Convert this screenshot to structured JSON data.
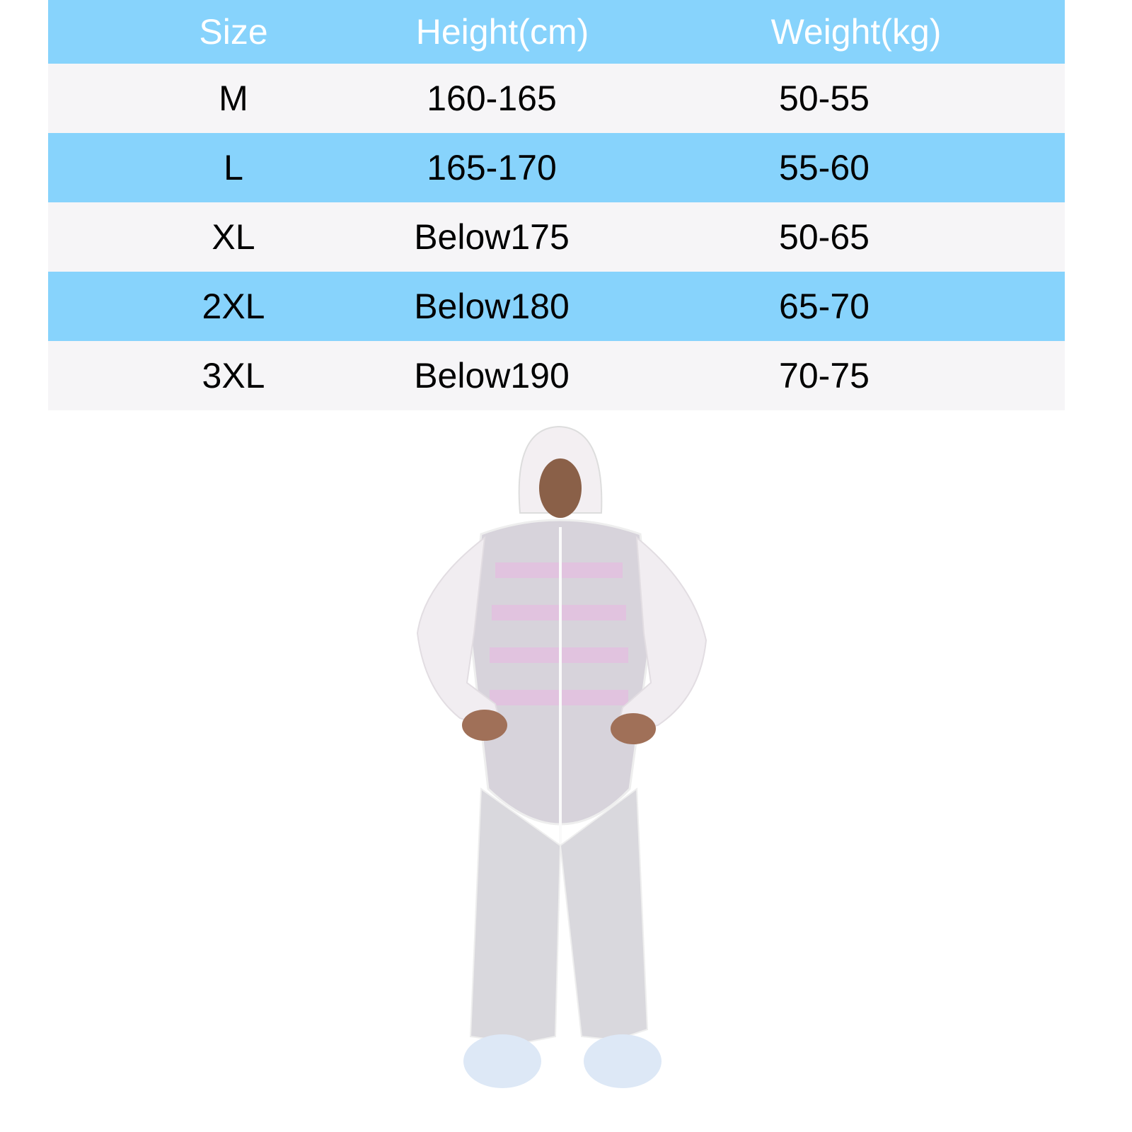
{
  "table": {
    "headers": [
      "Size",
      "Height(cm)",
      "Weight(kg)"
    ],
    "rows": [
      [
        "M",
        "160-165",
        "50-55"
      ],
      [
        "L",
        "165-170",
        "55-60"
      ],
      [
        "XL",
        "Below175",
        "50-65"
      ],
      [
        "2XL",
        "Below180",
        "65-70"
      ],
      [
        "3XL",
        "Below190",
        "70-75"
      ]
    ]
  },
  "colors": {
    "header_bg": "#87d3fc",
    "alt_row_bg": "#f6f5f7",
    "header_text": "#ffffff"
  }
}
